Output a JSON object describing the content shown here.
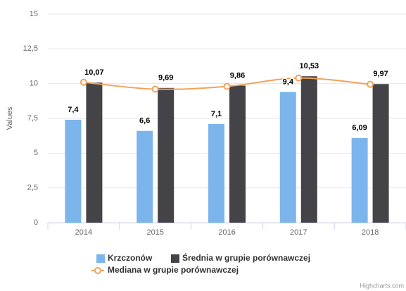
{
  "chart_data": {
    "type": "bar",
    "y_axis_label": "Values",
    "categories": [
      "2014",
      "2015",
      "2016",
      "2017",
      "2018"
    ],
    "series": [
      {
        "name": "Krzczonów",
        "type": "column",
        "color": "#7cb5ec",
        "values": [
          7.4,
          6.6,
          7.1,
          9.4,
          6.09
        ],
        "value_labels": [
          "7,4",
          "6,6",
          "7,1",
          "9,4",
          "6,09"
        ]
      },
      {
        "name": "Średnia w grupie porównawczej",
        "type": "column",
        "color": "#434348",
        "values": [
          10.07,
          9.69,
          9.86,
          10.53,
          9.97
        ],
        "value_labels": [
          "10,07",
          "9,69",
          "9,86",
          "10,53",
          "9,97"
        ]
      },
      {
        "name": "Mediana w grupie porównawczej",
        "type": "line",
        "color": "#f0a25a",
        "values": [
          10.1,
          9.6,
          9.8,
          10.4,
          9.95
        ]
      }
    ],
    "ylim": [
      0,
      15
    ],
    "yticks": [
      0,
      {
        "value": 2.5,
        "label": "2,5"
      },
      5,
      {
        "value": 7.5,
        "label": "7,5"
      },
      10,
      {
        "value": 12.5,
        "label": "12,5"
      },
      15
    ],
    "grid": true,
    "legend": "bottom",
    "credits": "Highcharts.com"
  }
}
